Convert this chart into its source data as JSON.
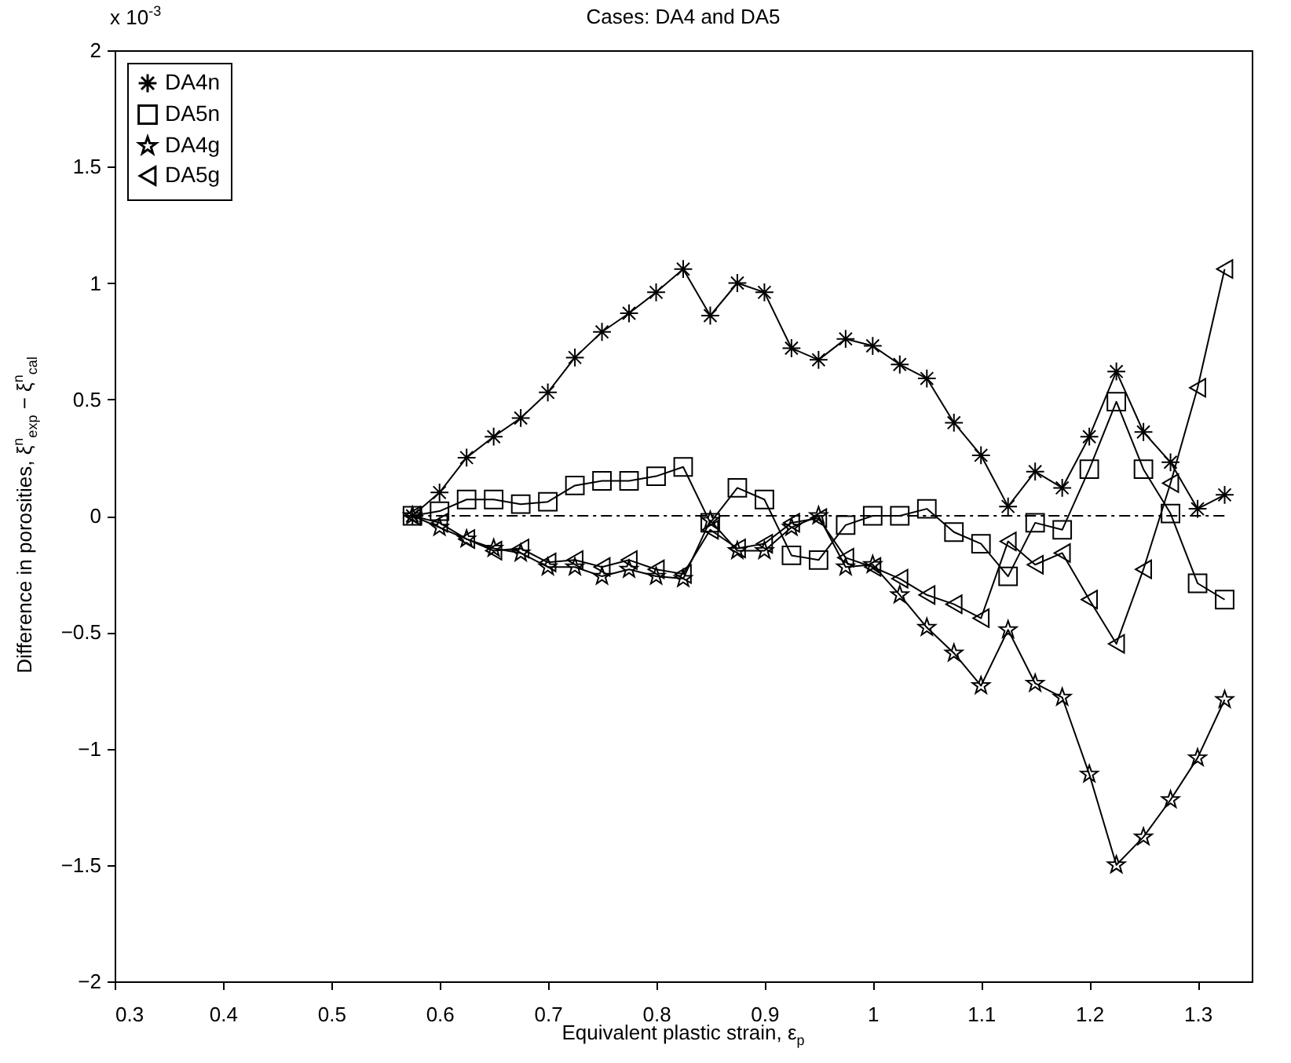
{
  "chart_data": {
    "type": "line",
    "title": "Cases:  DA4 and DA5",
    "xlabel": "Equivalent plastic strain,  ε$_{p}$",
    "ylabel": "Difference in porosities,  ξ$^{n}$$_{exp}$ − ξ$^{n}$$_{cal}$",
    "annotations": [
      "x 10$^{-3}$"
    ],
    "x": [
      0.575,
      0.6,
      0.625,
      0.65,
      0.675,
      0.7,
      0.725,
      0.75,
      0.775,
      0.8,
      0.825,
      0.85,
      0.875,
      0.9,
      0.925,
      0.95,
      0.975,
      1.0,
      1.025,
      1.05,
      1.075,
      1.1,
      1.125,
      1.15,
      1.175,
      1.2,
      1.225,
      1.25,
      1.275,
      1.3,
      1.325
    ],
    "series": [
      {
        "name": "DA4n",
        "color": "#000000",
        "marker": "cross",
        "values": [
          0,
          0.1,
          0.25,
          0.34,
          0.42,
          0.53,
          0.68,
          0.79,
          0.87,
          0.96,
          1.06,
          0.86,
          1.0,
          0.96,
          0.72,
          0.67,
          0.76,
          0.73,
          0.65,
          0.59,
          0.4,
          0.26,
          0.04,
          0.19,
          0.12,
          0.34,
          0.62,
          0.36,
          0.23,
          0.03,
          0.09
        ]
      },
      {
        "name": "DA5n",
        "color": "#000000",
        "marker": "square",
        "values": [
          0,
          0.02,
          0.07,
          0.07,
          0.05,
          0.06,
          0.13,
          0.15,
          0.15,
          0.17,
          0.21,
          -0.03,
          0.12,
          0.07,
          -0.17,
          -0.19,
          -0.04,
          0,
          0,
          0.03,
          -0.07,
          -0.12,
          -0.26,
          -0.03,
          -0.06,
          0.2,
          0.49,
          0.2,
          0.01,
          -0.29,
          -0.36
        ]
      },
      {
        "name": "DA4g",
        "color": "#000000",
        "marker": "star",
        "values": [
          0,
          -0.05,
          -0.1,
          -0.14,
          -0.16,
          -0.22,
          -0.22,
          -0.26,
          -0.23,
          -0.26,
          -0.27,
          -0.02,
          -0.15,
          -0.15,
          -0.05,
          0,
          -0.22,
          -0.21,
          -0.34,
          -0.48,
          -0.59,
          -0.73,
          -0.49,
          -0.72,
          -0.78,
          -1.11,
          -1.5,
          -1.38,
          -1.22,
          -1.04,
          -0.79
        ]
      },
      {
        "name": "DA5g",
        "color": "#000000",
        "marker": "triangle",
        "values": [
          0,
          -0.03,
          -0.1,
          -0.15,
          -0.14,
          -0.2,
          -0.19,
          -0.22,
          -0.19,
          -0.23,
          -0.25,
          -0.06,
          -0.14,
          -0.12,
          -0.03,
          -0.01,
          -0.18,
          -0.22,
          -0.27,
          -0.34,
          -0.38,
          -0.44,
          -0.11,
          -0.21,
          -0.16,
          -0.36,
          -0.55,
          -0.23,
          0.14,
          0.55,
          1.06
        ]
      },
      {
        "color": "#000000",
        "marker": "none",
        "line_style": "dashed",
        "x": [
          0.575,
          1.325
        ],
        "values": [
          0,
          0
        ]
      }
    ],
    "xlim": [
      0.3,
      1.35
    ],
    "xticks": [
      0.3,
      0.4,
      0.5,
      0.6,
      0.7,
      0.8,
      0.9,
      1,
      1.1,
      1.2,
      1.3
    ],
    "ylim": [
      -2,
      2
    ],
    "yticks": [
      -2,
      -1.5,
      -1,
      -0.5,
      0,
      0.5,
      1,
      1.5,
      2
    ],
    "legend": "top left"
  }
}
